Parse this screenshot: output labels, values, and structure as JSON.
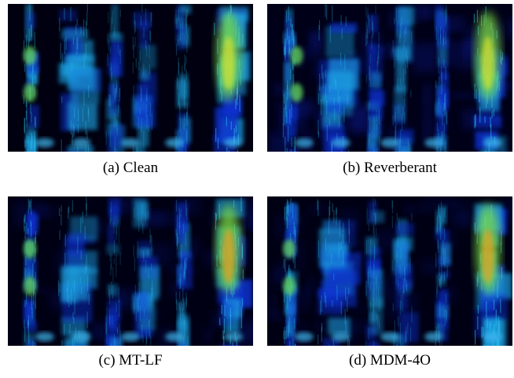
{
  "figure": {
    "captions": [
      "(a) Clean",
      "(b) Reverberant",
      "(c) MT-LF",
      "(d) MDM-4O"
    ]
  }
}
